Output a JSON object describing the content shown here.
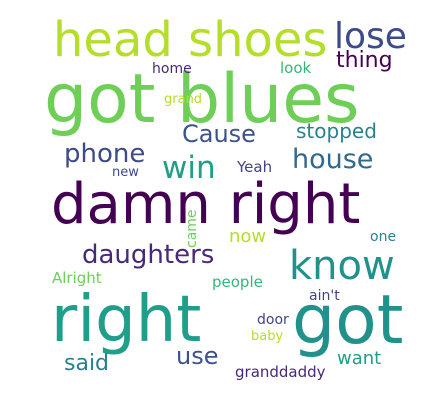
{
  "wordcloud": {
    "words": [
      {
        "text": "head shoes",
        "color": "#b5de2b"
      },
      {
        "text": "lose",
        "color": "#3e4a89"
      },
      {
        "text": "thing",
        "color": "#440154"
      },
      {
        "text": "got blues",
        "color": "#6ece58"
      },
      {
        "text": "home",
        "color": "#482878"
      },
      {
        "text": "look",
        "color": "#35b779"
      },
      {
        "text": "grand",
        "color": "#b5de2b"
      },
      {
        "text": "Cause",
        "color": "#3b528b"
      },
      {
        "text": "stopped",
        "color": "#26828e"
      },
      {
        "text": "phone",
        "color": "#3e4a89"
      },
      {
        "text": "win",
        "color": "#1f9e89"
      },
      {
        "text": "house",
        "color": "#31688e"
      },
      {
        "text": "new",
        "color": "#3e4a89"
      },
      {
        "text": "Yeah",
        "color": "#414487"
      },
      {
        "text": "damn right",
        "color": "#440154"
      },
      {
        "text": "came",
        "color": "#6ece58"
      },
      {
        "text": "daughters",
        "color": "#482878"
      },
      {
        "text": "now",
        "color": "#b5de2b"
      },
      {
        "text": "one",
        "color": "#26828e"
      },
      {
        "text": "know",
        "color": "#21918c"
      },
      {
        "text": "Alright",
        "color": "#6ece58"
      },
      {
        "text": "people",
        "color": "#35b779"
      },
      {
        "text": "ain't",
        "color": "#414487"
      },
      {
        "text": "right",
        "color": "#1f9e89"
      },
      {
        "text": "got",
        "color": "#21918c"
      },
      {
        "text": "door",
        "color": "#414487"
      },
      {
        "text": "baby",
        "color": "#b5de2b"
      },
      {
        "text": "use",
        "color": "#3b528b"
      },
      {
        "text": "said",
        "color": "#26828e"
      },
      {
        "text": "want",
        "color": "#1f9e89"
      },
      {
        "text": "granddaddy",
        "color": "#482878"
      }
    ]
  }
}
